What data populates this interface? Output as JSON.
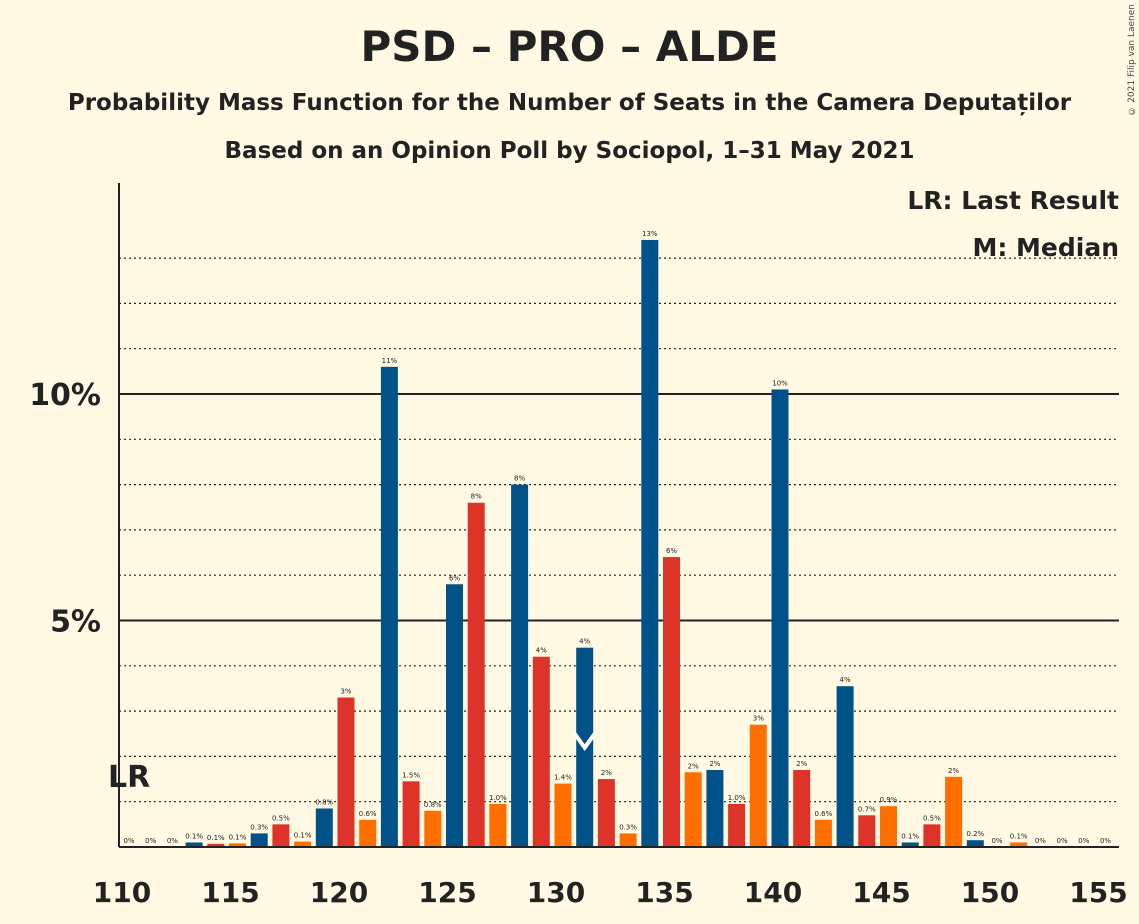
{
  "title": "PSD – PRO – ALDE",
  "subtitle": "Probability Mass Function for the Number of Seats in the Camera Deputaților",
  "subtitle2": "Based on an Opinion Poll by Sociopol, 1–31 May 2021",
  "copyright": "© 2021 Filip van Laenen",
  "legend": {
    "lr": "LR: Last Result",
    "m": "M: Median"
  },
  "lr_label": "LR",
  "median_label": "M",
  "colors": {
    "blue": "#005288",
    "red": "#DE3328",
    "orange": "#FF6F00",
    "background": "#FFF9E3"
  },
  "chart_data": {
    "type": "bar",
    "xlabel": "",
    "ylabel": "",
    "ylim": [
      0,
      14
    ],
    "x_ticks": [
      110,
      115,
      120,
      125,
      130,
      135,
      140,
      145,
      150,
      155
    ],
    "y_ticks": [
      {
        "value": 5,
        "label": "5%"
      },
      {
        "value": 10,
        "label": "10%"
      }
    ],
    "last_result_seat": 110,
    "median_seat": 131,
    "bars": [
      {
        "seat": 110,
        "value": 0,
        "label": "0%",
        "color": "blue"
      },
      {
        "seat": 111,
        "value": 0,
        "label": "0%",
        "color": "red"
      },
      {
        "seat": 112,
        "value": 0,
        "label": "0%",
        "color": "orange"
      },
      {
        "seat": 113,
        "value": 0.1,
        "label": "0.1%",
        "color": "blue"
      },
      {
        "seat": 114,
        "value": 0.07,
        "label": "0.1%",
        "color": "red"
      },
      {
        "seat": 115,
        "value": 0.08,
        "label": "0.1%",
        "color": "orange"
      },
      {
        "seat": 116,
        "value": 0.3,
        "label": "0.3%",
        "color": "blue"
      },
      {
        "seat": 117,
        "value": 0.5,
        "label": "0.5%",
        "color": "red"
      },
      {
        "seat": 118,
        "value": 0.12,
        "label": "0.1%",
        "color": "orange"
      },
      {
        "seat": 119,
        "value": 0.85,
        "label": "0.8%",
        "color": "blue"
      },
      {
        "seat": 120,
        "value": 3.3,
        "label": "3%",
        "color": "red"
      },
      {
        "seat": 121,
        "value": 0.6,
        "label": "0.6%",
        "color": "orange"
      },
      {
        "seat": 122,
        "value": 10.6,
        "label": "11%",
        "color": "blue"
      },
      {
        "seat": 123,
        "value": 1.45,
        "label": "1.5%",
        "color": "red"
      },
      {
        "seat": 124,
        "value": 0.8,
        "label": "0.8%",
        "color": "orange"
      },
      {
        "seat": 125,
        "value": 5.8,
        "label": "6%",
        "color": "blue"
      },
      {
        "seat": 126,
        "value": 7.6,
        "label": "8%",
        "color": "red"
      },
      {
        "seat": 127,
        "value": 0.95,
        "label": "1.0%",
        "color": "orange"
      },
      {
        "seat": 128,
        "value": 8.0,
        "label": "8%",
        "color": "blue"
      },
      {
        "seat": 129,
        "value": 4.2,
        "label": "4%",
        "color": "red"
      },
      {
        "seat": 130,
        "value": 1.4,
        "label": "1.4%",
        "color": "orange"
      },
      {
        "seat": 131,
        "value": 4.4,
        "label": "4%",
        "color": "blue"
      },
      {
        "seat": 132,
        "value": 1.5,
        "label": "2%",
        "color": "red"
      },
      {
        "seat": 133,
        "value": 0.3,
        "label": "0.3%",
        "color": "orange"
      },
      {
        "seat": 134,
        "value": 13.4,
        "label": "13%",
        "color": "blue"
      },
      {
        "seat": 135,
        "value": 6.4,
        "label": "6%",
        "color": "red"
      },
      {
        "seat": 136,
        "value": 1.65,
        "label": "2%",
        "color": "orange"
      },
      {
        "seat": 137,
        "value": 1.7,
        "label": "2%",
        "color": "blue"
      },
      {
        "seat": 138,
        "value": 0.95,
        "label": "1.0%",
        "color": "red"
      },
      {
        "seat": 139,
        "value": 2.7,
        "label": "3%",
        "color": "orange"
      },
      {
        "seat": 140,
        "value": 10.1,
        "label": "10%",
        "color": "blue"
      },
      {
        "seat": 141,
        "value": 1.7,
        "label": "2%",
        "color": "red"
      },
      {
        "seat": 142,
        "value": 0.6,
        "label": "0.6%",
        "color": "orange"
      },
      {
        "seat": 143,
        "value": 3.55,
        "label": "4%",
        "color": "blue"
      },
      {
        "seat": 144,
        "value": 0.7,
        "label": "0.7%",
        "color": "red"
      },
      {
        "seat": 145,
        "value": 0.9,
        "label": "0.9%",
        "color": "orange"
      },
      {
        "seat": 146,
        "value": 0.1,
        "label": "0.1%",
        "color": "blue"
      },
      {
        "seat": 147,
        "value": 0.5,
        "label": "0.5%",
        "color": "red"
      },
      {
        "seat": 148,
        "value": 1.55,
        "label": "2%",
        "color": "orange"
      },
      {
        "seat": 149,
        "value": 0.15,
        "label": "0.2%",
        "color": "blue"
      },
      {
        "seat": 150,
        "value": 0,
        "label": "0%",
        "color": "red"
      },
      {
        "seat": 151,
        "value": 0.1,
        "label": "0.1%",
        "color": "orange"
      },
      {
        "seat": 152,
        "value": 0,
        "label": "0%",
        "color": "blue"
      },
      {
        "seat": 153,
        "value": 0,
        "label": "0%",
        "color": "red"
      },
      {
        "seat": 154,
        "value": 0,
        "label": "0%",
        "color": "orange"
      },
      {
        "seat": 155,
        "value": 0,
        "label": "0%",
        "color": "blue"
      }
    ]
  }
}
